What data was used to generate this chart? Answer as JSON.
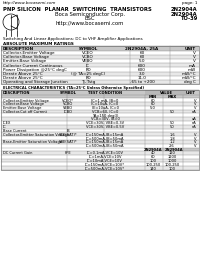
{
  "title_left": "PNP SILICON  PLANAR  SWITCHING  TRANSISTORS",
  "title_right_lines": [
    "2N2904A",
    "2N2904A",
    "TO-39"
  ],
  "company": "Boca Semiconductor Corp.",
  "division": "BSC",
  "website_header": "http://www.bocasemi.com",
  "subtitle": "Switching And Linear Applications: DC to VHF Amplifier Applications",
  "section1_title": "ABSOLUTE MAXIMUM RATINGS",
  "abs_max_rows": [
    [
      "Collector-Emitter Voltage",
      "VCEO",
      "60",
      "V"
    ],
    [
      "Collector-Base Voltage",
      "VCBO",
      "60",
      "V"
    ],
    [
      "Emitter-Base Voltage",
      "VEBO",
      "5.0",
      "V"
    ],
    [
      "Collector Current Continuous",
      "IC",
      "600",
      "mA"
    ],
    [
      "Power Dissipation @25°C degC",
      "PD",
      "600",
      "mW"
    ],
    [
      "Derate Above 25°C",
      "(@ TA=25 degC)",
      "3.0",
      "mW/°C"
    ],
    [
      "Derate Above 25°C",
      "PD",
      "11.0",
      "mW/°C"
    ],
    [
      "Operating and Storage Junction",
      "Tj, Tstg",
      "-65 to +200",
      "deg C"
    ]
  ],
  "section2_title": "ELECTRICAL CHARACTERISTICS (TA=25°C Unless Otherwise Specified)",
  "elec_rows": [
    [
      "Collector-Emitter Voltage",
      "VCEO*",
      "IC=1 mA, IB=0",
      "60",
      "",
      "V"
    ],
    [
      "Collector-Base Voltage",
      "VCBO",
      "IC=10uA, IC=0",
      "60",
      "",
      "V"
    ],
    [
      "Emitter-Base Voltage",
      "VEBO",
      "IE=10uA, IC=0",
      "5.0",
      "",
      "V"
    ],
    [
      "Collector-Cut off Current",
      "ICBO",
      "VCB=60, IC=0",
      "",
      "50",
      "nA"
    ],
    [
      "",
      "",
      "TA=150 deg(J)",
      "",
      "",
      ""
    ],
    [
      "",
      "",
      "VCB=30V, IB=0",
      "",
      "",
      "uA"
    ],
    [
      "ICEX",
      "",
      "VCE=30V, VBE=0.3V",
      "",
      "50",
      "nA"
    ],
    [
      "IC",
      "",
      "VCE=30V, VBE=0.5V",
      "",
      "50",
      "nA"
    ],
    [
      "Base Current",
      "IB",
      "",
      "",
      "",
      ""
    ],
    [
      "Collector-Emitter Saturation Voltage",
      "VCE(SAT)*",
      "IC=150mA,IB=15mA",
      "",
      "1.6",
      "V"
    ],
    [
      "",
      "",
      "IC=500mA,IB=50mA",
      "",
      "1.8",
      "V"
    ],
    [
      "Base-Emitter Saturation Voltage",
      "VBE(SAT)*",
      "IC=150mA,IB=15mA",
      "",
      "1.2",
      "V"
    ],
    [
      "",
      "",
      "IC=500mA,IB=50mA",
      "",
      "2.6",
      "V"
    ]
  ],
  "hfe_label1": "2N2904A",
  "hfe_label2": "2N2904A",
  "hfe_rows": [
    [
      "DC Current Gain",
      "hFE",
      "IC=0.1mA,VCE=10V",
      "40",
      "120"
    ],
    [
      "",
      "",
      "IC=1mA,VCE=10V",
      "60",
      "1200"
    ],
    [
      "",
      "",
      "IC=10mA,VCE=10V",
      "100",
      "1000"
    ],
    [
      "",
      "",
      "IC=150mA,VCE=10V*",
      "100-250",
      "100-250"
    ],
    [
      "",
      "",
      "IC=500mA,VCE=10V*",
      "140",
      "100"
    ]
  ],
  "footer_website": "http://www.bocasemi.com",
  "footer_page": "page: 1",
  "bg_color": "#ffffff",
  "text_color": "#000000",
  "gray_header": "#c8c8c8",
  "gray_row": "#e8e8e8"
}
